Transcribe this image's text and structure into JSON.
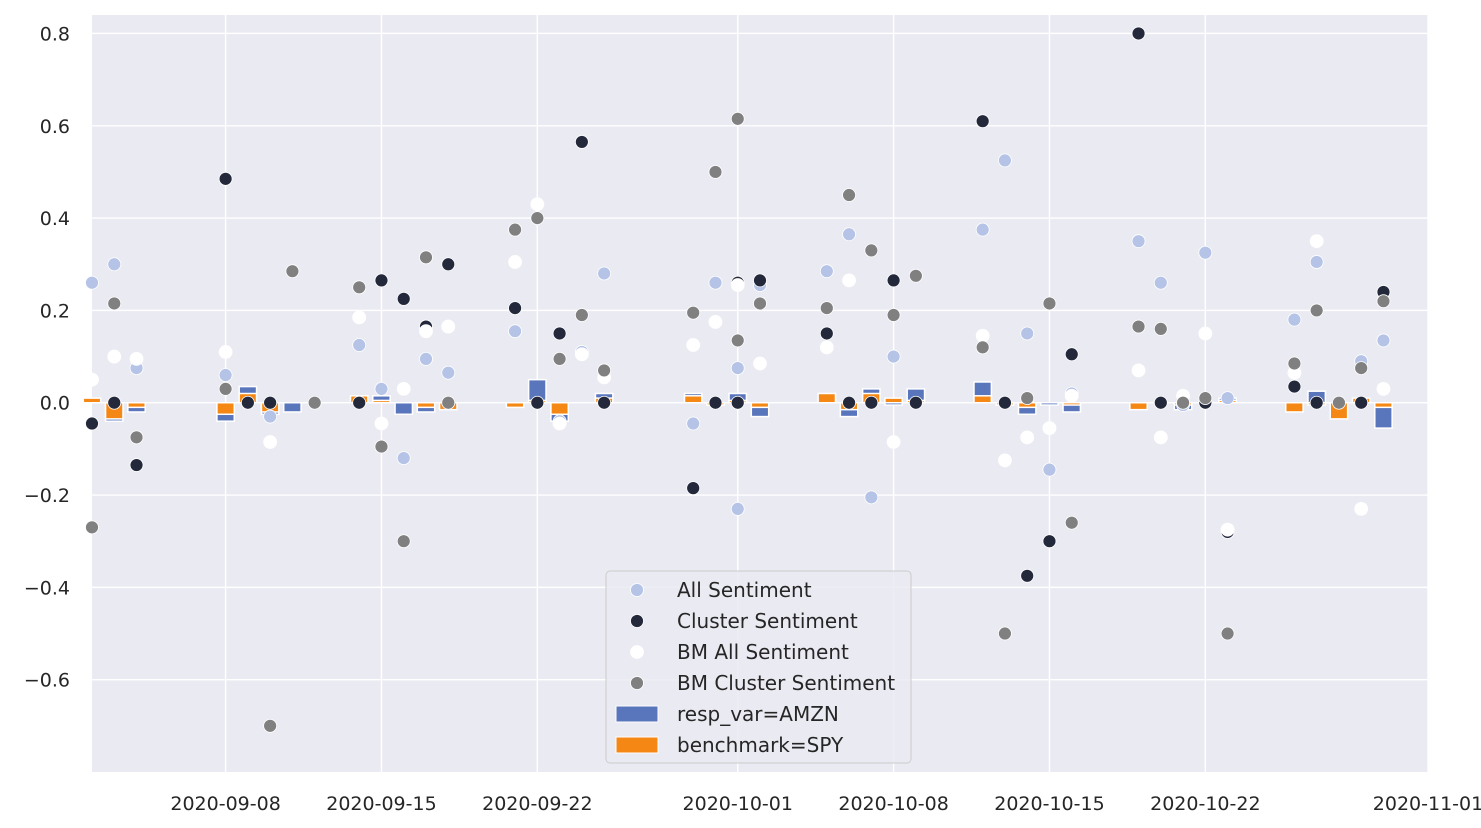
{
  "chart_data": {
    "type": "scatter",
    "title": "",
    "xlabel": "",
    "ylabel": "",
    "xlim": [
      "2020-09-02",
      "2020-11-01"
    ],
    "ylim": [
      -0.8,
      0.84
    ],
    "grid": true,
    "legend_position": "lower center",
    "x_ticks": [
      "2020-09-08",
      "2020-09-15",
      "2020-09-22",
      "2020-10-01",
      "2020-10-08",
      "2020-10-15",
      "2020-10-22",
      "2020-11-01"
    ],
    "y_ticks": [
      {
        "value": 0.8,
        "label": "0.8"
      },
      {
        "value": 0.6,
        "label": "0.6"
      },
      {
        "value": 0.4,
        "label": "0.4"
      },
      {
        "value": 0.2,
        "label": "0.2"
      },
      {
        "value": 0.0,
        "label": "0.0"
      },
      {
        "value": -0.2,
        "label": "−0.2"
      },
      {
        "value": -0.4,
        "label": "−0.4"
      },
      {
        "value": -0.6,
        "label": "−0.6"
      }
    ],
    "colors": {
      "background": "#eaeaf2",
      "grid": "#ffffff",
      "all_sentiment": "#b4c3e6",
      "cluster_sentiment": "#23283a",
      "bm_all_sentiment": "#ffffff",
      "bm_cluster_sentiment": "#808080",
      "resp_var": "#5975bc",
      "benchmark": "#f58714"
    },
    "series": [
      {
        "name": "All Sentiment",
        "kind": "scatter",
        "color_key": "all_sentiment",
        "points": [
          [
            "2020-09-02",
            0.26
          ],
          [
            "2020-09-03",
            0.3
          ],
          [
            "2020-09-04",
            0.075
          ],
          [
            "2020-09-08",
            0.06
          ],
          [
            "2020-09-10",
            -0.03
          ],
          [
            "2020-09-14",
            0.125
          ],
          [
            "2020-09-15",
            0.03
          ],
          [
            "2020-09-16",
            -0.12
          ],
          [
            "2020-09-17",
            0.095
          ],
          [
            "2020-09-18",
            0.065
          ],
          [
            "2020-09-21",
            0.155
          ],
          [
            "2020-09-23",
            -0.04
          ],
          [
            "2020-09-24",
            0.11
          ],
          [
            "2020-09-25",
            0.28
          ],
          [
            "2020-09-29",
            -0.045
          ],
          [
            "2020-09-30",
            0.26
          ],
          [
            "2020-10-01",
            0.075
          ],
          [
            "2020-10-01",
            -0.23
          ],
          [
            "2020-10-02",
            0.255
          ],
          [
            "2020-10-05",
            0.285
          ],
          [
            "2020-10-06",
            0.365
          ],
          [
            "2020-10-07",
            -0.205
          ],
          [
            "2020-10-08",
            0.1
          ],
          [
            "2020-10-12",
            0.375
          ],
          [
            "2020-10-13",
            0.525
          ],
          [
            "2020-10-14",
            0.15
          ],
          [
            "2020-10-15",
            -0.145
          ],
          [
            "2020-10-16",
            0.02
          ],
          [
            "2020-10-19",
            0.35
          ],
          [
            "2020-10-20",
            0.26
          ],
          [
            "2020-10-21",
            -0.005
          ],
          [
            "2020-10-22",
            0.325
          ],
          [
            "2020-10-23",
            0.01
          ],
          [
            "2020-10-26",
            0.18
          ],
          [
            "2020-10-27",
            0.305
          ],
          [
            "2020-10-29",
            0.09
          ],
          [
            "2020-10-30",
            0.135
          ]
        ]
      },
      {
        "name": "Cluster Sentiment",
        "kind": "scatter",
        "color_key": "cluster_sentiment",
        "points": [
          [
            "2020-09-02",
            -0.045
          ],
          [
            "2020-09-03",
            0.0
          ],
          [
            "2020-09-04",
            -0.135
          ],
          [
            "2020-09-08",
            0.485
          ],
          [
            "2020-09-09",
            0.0
          ],
          [
            "2020-09-10",
            0.0
          ],
          [
            "2020-09-14",
            0.0
          ],
          [
            "2020-09-15",
            0.265
          ],
          [
            "2020-09-16",
            0.225
          ],
          [
            "2020-09-17",
            0.165
          ],
          [
            "2020-09-18",
            0.3
          ],
          [
            "2020-09-21",
            0.205
          ],
          [
            "2020-09-22",
            0.0
          ],
          [
            "2020-09-23",
            0.15
          ],
          [
            "2020-09-24",
            0.565
          ],
          [
            "2020-09-25",
            0.0
          ],
          [
            "2020-09-29",
            -0.185
          ],
          [
            "2020-09-30",
            0.0
          ],
          [
            "2020-10-01",
            0.0
          ],
          [
            "2020-10-01",
            0.26
          ],
          [
            "2020-10-02",
            0.265
          ],
          [
            "2020-10-05",
            0.15
          ],
          [
            "2020-10-06",
            0.0
          ],
          [
            "2020-10-07",
            0.0
          ],
          [
            "2020-10-08",
            0.265
          ],
          [
            "2020-10-09",
            0.0
          ],
          [
            "2020-10-12",
            0.61
          ],
          [
            "2020-10-13",
            0.0
          ],
          [
            "2020-10-14",
            -0.375
          ],
          [
            "2020-10-15",
            -0.3
          ],
          [
            "2020-10-16",
            0.105
          ],
          [
            "2020-10-19",
            0.8
          ],
          [
            "2020-10-20",
            0.0
          ],
          [
            "2020-10-21",
            0.0
          ],
          [
            "2020-10-22",
            0.0
          ],
          [
            "2020-10-23",
            -0.28
          ],
          [
            "2020-10-26",
            0.035
          ],
          [
            "2020-10-27",
            0.0
          ],
          [
            "2020-10-29",
            0.0
          ],
          [
            "2020-10-30",
            0.24
          ]
        ]
      },
      {
        "name": "BM All Sentiment",
        "kind": "scatter",
        "color_key": "bm_all_sentiment",
        "points": [
          [
            "2020-09-02",
            0.05
          ],
          [
            "2020-09-03",
            0.1
          ],
          [
            "2020-09-04",
            0.095
          ],
          [
            "2020-09-08",
            0.11
          ],
          [
            "2020-09-10",
            -0.085
          ],
          [
            "2020-09-14",
            0.185
          ],
          [
            "2020-09-15",
            -0.045
          ],
          [
            "2020-09-16",
            0.03
          ],
          [
            "2020-09-17",
            0.155
          ],
          [
            "2020-09-18",
            0.165
          ],
          [
            "2020-09-21",
            0.305
          ],
          [
            "2020-09-22",
            0.43
          ],
          [
            "2020-09-23",
            -0.045
          ],
          [
            "2020-09-24",
            0.105
          ],
          [
            "2020-09-25",
            0.055
          ],
          [
            "2020-09-29",
            0.125
          ],
          [
            "2020-09-30",
            0.175
          ],
          [
            "2020-10-01",
            0.255
          ],
          [
            "2020-10-02",
            0.085
          ],
          [
            "2020-10-05",
            0.12
          ],
          [
            "2020-10-06",
            0.265
          ],
          [
            "2020-10-08",
            -0.085
          ],
          [
            "2020-10-12",
            0.145
          ],
          [
            "2020-10-13",
            -0.125
          ],
          [
            "2020-10-14",
            -0.075
          ],
          [
            "2020-10-15",
            -0.055
          ],
          [
            "2020-10-16",
            0.015
          ],
          [
            "2020-10-19",
            0.07
          ],
          [
            "2020-10-20",
            -0.075
          ],
          [
            "2020-10-21",
            0.015
          ],
          [
            "2020-10-22",
            0.15
          ],
          [
            "2020-10-23",
            -0.275
          ],
          [
            "2020-10-26",
            0.065
          ],
          [
            "2020-10-27",
            0.35
          ],
          [
            "2020-10-29",
            -0.23
          ],
          [
            "2020-10-30",
            0.03
          ]
        ]
      },
      {
        "name": "BM Cluster Sentiment",
        "kind": "scatter",
        "color_key": "bm_cluster_sentiment",
        "points": [
          [
            "2020-09-02",
            -0.27
          ],
          [
            "2020-09-03",
            0.215
          ],
          [
            "2020-09-04",
            -0.075
          ],
          [
            "2020-09-08",
            0.03
          ],
          [
            "2020-09-10",
            -0.7
          ],
          [
            "2020-09-11",
            0.285
          ],
          [
            "2020-09-12",
            0.0
          ],
          [
            "2020-09-14",
            0.25
          ],
          [
            "2020-09-15",
            -0.095
          ],
          [
            "2020-09-16",
            -0.3
          ],
          [
            "2020-09-17",
            0.315
          ],
          [
            "2020-09-18",
            0.0
          ],
          [
            "2020-09-21",
            0.375
          ],
          [
            "2020-09-22",
            0.4
          ],
          [
            "2020-09-23",
            0.095
          ],
          [
            "2020-09-24",
            0.19
          ],
          [
            "2020-09-25",
            0.07
          ],
          [
            "2020-09-29",
            0.195
          ],
          [
            "2020-09-30",
            0.5
          ],
          [
            "2020-10-01",
            0.135
          ],
          [
            "2020-10-01",
            0.615
          ],
          [
            "2020-10-02",
            0.215
          ],
          [
            "2020-10-05",
            0.205
          ],
          [
            "2020-10-06",
            0.45
          ],
          [
            "2020-10-07",
            0.33
          ],
          [
            "2020-10-08",
            0.19
          ],
          [
            "2020-10-09",
            0.275
          ],
          [
            "2020-10-12",
            0.12
          ],
          [
            "2020-10-13",
            -0.5
          ],
          [
            "2020-10-14",
            0.01
          ],
          [
            "2020-10-15",
            0.215
          ],
          [
            "2020-10-16",
            -0.26
          ],
          [
            "2020-10-19",
            0.165
          ],
          [
            "2020-10-20",
            0.16
          ],
          [
            "2020-10-21",
            0.0
          ],
          [
            "2020-10-22",
            0.01
          ],
          [
            "2020-10-23",
            -0.5
          ],
          [
            "2020-10-26",
            0.085
          ],
          [
            "2020-10-27",
            0.2
          ],
          [
            "2020-10-28",
            0.0
          ],
          [
            "2020-10-29",
            0.075
          ],
          [
            "2020-10-30",
            0.22
          ]
        ]
      },
      {
        "name": "resp_var=AMZN",
        "kind": "bar",
        "color_key": "resp_var",
        "points": [
          [
            "2020-09-03",
            -0.04
          ],
          [
            "2020-09-04",
            -0.02
          ],
          [
            "2020-09-08",
            -0.04
          ],
          [
            "2020-09-09",
            0.035
          ],
          [
            "2020-09-10",
            -0.025
          ],
          [
            "2020-09-11",
            -0.02
          ],
          [
            "2020-09-14",
            0.005
          ],
          [
            "2020-09-15",
            0.015
          ],
          [
            "2020-09-16",
            -0.025
          ],
          [
            "2020-09-17",
            -0.02
          ],
          [
            "2020-09-18",
            -0.005
          ],
          [
            "2020-09-21",
            -0.005
          ],
          [
            "2020-09-22",
            0.05
          ],
          [
            "2020-09-23",
            -0.04
          ],
          [
            "2020-09-25",
            0.02
          ],
          [
            "2020-09-29",
            0.02
          ],
          [
            "2020-09-30",
            -0.005
          ],
          [
            "2020-10-01",
            0.02
          ],
          [
            "2020-10-02",
            -0.03
          ],
          [
            "2020-10-05",
            0.01
          ],
          [
            "2020-10-06",
            -0.03
          ],
          [
            "2020-10-07",
            0.03
          ],
          [
            "2020-10-08",
            -0.005
          ],
          [
            "2020-10-09",
            0.03
          ],
          [
            "2020-10-12",
            0.045
          ],
          [
            "2020-10-13",
            -0.005
          ],
          [
            "2020-10-14",
            -0.025
          ],
          [
            "2020-10-15",
            -0.005
          ],
          [
            "2020-10-16",
            -0.02
          ],
          [
            "2020-10-19",
            -0.005
          ],
          [
            "2020-10-21",
            -0.015
          ],
          [
            "2020-10-23",
            0.01
          ],
          [
            "2020-10-27",
            0.025
          ],
          [
            "2020-10-28",
            -0.02
          ],
          [
            "2020-10-29",
            0.005
          ],
          [
            "2020-10-30",
            -0.055
          ]
        ]
      },
      {
        "name": "benchmark=SPY",
        "kind": "bar",
        "color_key": "benchmark",
        "points": [
          [
            "2020-09-02",
            0.01
          ],
          [
            "2020-09-03",
            -0.035
          ],
          [
            "2020-09-04",
            -0.01
          ],
          [
            "2020-09-08",
            -0.025
          ],
          [
            "2020-09-09",
            0.02
          ],
          [
            "2020-09-10",
            -0.02
          ],
          [
            "2020-09-14",
            0.015
          ],
          [
            "2020-09-15",
            0.005
          ],
          [
            "2020-09-17",
            -0.01
          ],
          [
            "2020-09-18",
            -0.015
          ],
          [
            "2020-09-21",
            -0.01
          ],
          [
            "2020-09-22",
            0.005
          ],
          [
            "2020-09-23",
            -0.025
          ],
          [
            "2020-09-25",
            0.01
          ],
          [
            "2020-09-29",
            0.015
          ],
          [
            "2020-09-30",
            -0.005
          ],
          [
            "2020-10-01",
            0.005
          ],
          [
            "2020-10-02",
            -0.01
          ],
          [
            "2020-10-05",
            0.02
          ],
          [
            "2020-10-06",
            -0.015
          ],
          [
            "2020-10-07",
            0.02
          ],
          [
            "2020-10-08",
            0.01
          ],
          [
            "2020-10-09",
            0.005
          ],
          [
            "2020-10-12",
            0.015
          ],
          [
            "2020-10-13",
            -0.005
          ],
          [
            "2020-10-14",
            -0.01
          ],
          [
            "2020-10-16",
            -0.005
          ],
          [
            "2020-10-19",
            -0.015
          ],
          [
            "2020-10-21",
            -0.005
          ],
          [
            "2020-10-23",
            0.005
          ],
          [
            "2020-10-26",
            -0.02
          ],
          [
            "2020-10-27",
            -0.005
          ],
          [
            "2020-10-28",
            -0.035
          ],
          [
            "2020-10-29",
            0.01
          ],
          [
            "2020-10-30",
            -0.01
          ]
        ]
      }
    ]
  }
}
